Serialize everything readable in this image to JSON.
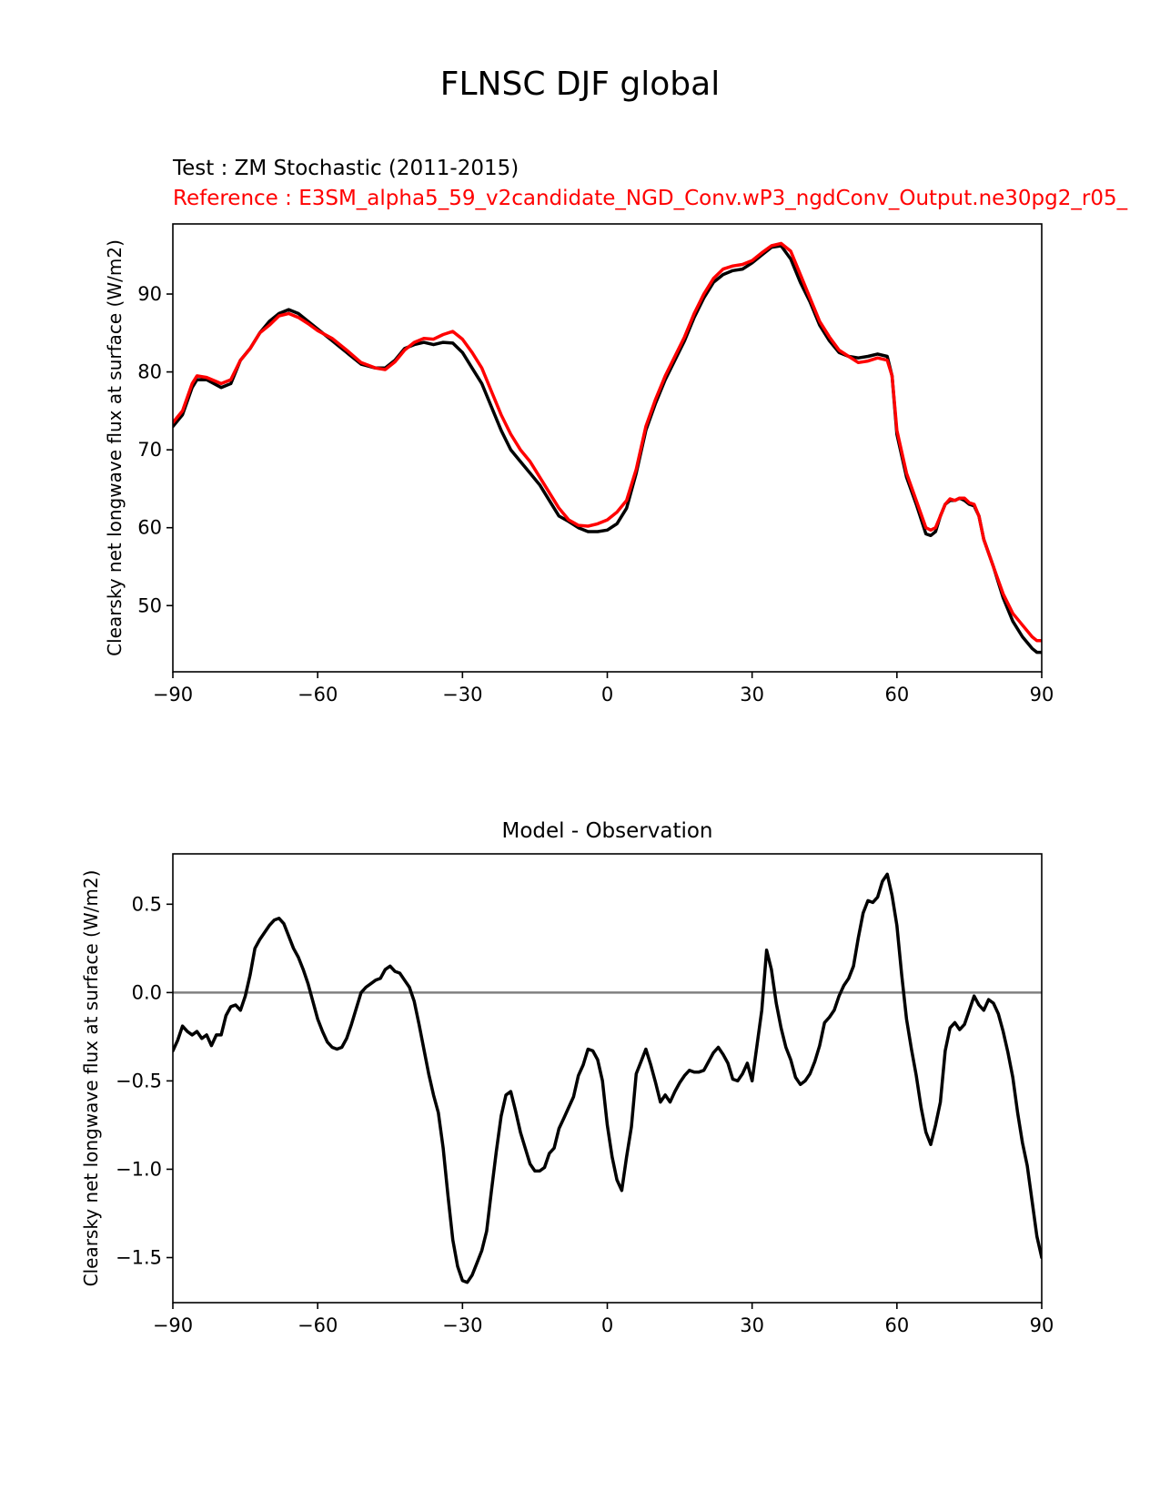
{
  "figure": {
    "suptitle": "FLNSC DJF global",
    "test_label": "Test : ZM Stochastic (2011-2015)",
    "reference_label": "Reference : E3SM_alpha5_59_v2candidate_NGD_Conv.wP3_ngdConv_Output.ne30pg2_r05_"
  },
  "chart_data": [
    {
      "type": "line",
      "title": "",
      "xlabel": "",
      "ylabel": "Clearsky net longwave flux at surface (W/m2)",
      "xlim": [
        -90,
        90
      ],
      "ylim": [
        41.5,
        99.0
      ],
      "xticks": [
        -90,
        -60,
        -30,
        0,
        30,
        60,
        90
      ],
      "xtick_labels": [
        "−90",
        "−60",
        "−30",
        "0",
        "30",
        "60",
        "90"
      ],
      "yticks": [
        50,
        60,
        70,
        80,
        90
      ],
      "ytick_labels": [
        "50",
        "60",
        "70",
        "80",
        "90"
      ],
      "grid": false,
      "series": [
        {
          "color": "#000000",
          "x": [
            -90,
            -88,
            -86,
            -85,
            -83,
            -80,
            -78,
            -76,
            -74,
            -72,
            -70,
            -68,
            -66,
            -64,
            -62,
            -60,
            -57,
            -54,
            -51,
            -48,
            -46,
            -44,
            -42,
            -40,
            -38,
            -36,
            -34,
            -32,
            -30,
            -28,
            -26,
            -24,
            -22,
            -20,
            -18,
            -16,
            -14,
            -12,
            -10,
            -8,
            -6,
            -4,
            -2,
            0,
            2,
            4,
            6,
            8,
            10,
            12,
            14,
            16,
            18,
            20,
            22,
            24,
            26,
            28,
            30,
            32,
            34,
            36,
            38,
            40,
            42,
            44,
            46,
            48,
            50,
            52,
            54,
            56,
            58,
            59,
            60,
            62,
            64,
            66,
            67,
            68,
            69,
            70,
            71,
            72,
            73,
            74,
            75,
            76,
            77,
            78,
            80,
            82,
            84,
            86,
            88,
            89,
            90
          ],
          "y": [
            73.0,
            74.5,
            78.0,
            79.0,
            79.0,
            78.0,
            78.5,
            81.5,
            83.0,
            85.0,
            86.5,
            87.5,
            88.0,
            87.5,
            86.5,
            85.5,
            84.0,
            82.5,
            81.0,
            80.5,
            80.5,
            81.5,
            83.0,
            83.5,
            83.8,
            83.5,
            83.8,
            83.7,
            82.5,
            80.5,
            78.5,
            75.5,
            72.5,
            70.0,
            68.5,
            67.0,
            65.5,
            63.5,
            61.5,
            60.8,
            60.0,
            59.5,
            59.5,
            59.7,
            60.5,
            62.5,
            67.0,
            72.5,
            76.0,
            79.0,
            81.5,
            84.0,
            87.0,
            89.5,
            91.5,
            92.5,
            93.0,
            93.2,
            94.0,
            95.0,
            96.0,
            96.2,
            94.5,
            91.5,
            89.0,
            86.0,
            84.0,
            82.5,
            82.0,
            81.8,
            82.0,
            82.3,
            82.0,
            79.5,
            72.0,
            66.5,
            63.0,
            59.2,
            59.0,
            59.5,
            61.5,
            63.0,
            63.5,
            63.5,
            63.8,
            63.5,
            63.0,
            62.8,
            61.5,
            58.5,
            55.0,
            51.0,
            48.0,
            46.0,
            44.5,
            44.0,
            44.0
          ]
        },
        {
          "color": "#ff0000",
          "x": [
            -90,
            -88,
            -86,
            -85,
            -83,
            -80,
            -78,
            -76,
            -74,
            -72,
            -70,
            -68,
            -66,
            -64,
            -62,
            -60,
            -57,
            -54,
            -51,
            -48,
            -46,
            -44,
            -42,
            -40,
            -38,
            -36,
            -34,
            -32,
            -30,
            -28,
            -26,
            -24,
            -22,
            -20,
            -18,
            -16,
            -14,
            -12,
            -10,
            -8,
            -6,
            -4,
            -2,
            0,
            2,
            4,
            6,
            8,
            10,
            12,
            14,
            16,
            18,
            20,
            22,
            24,
            26,
            28,
            30,
            32,
            34,
            36,
            38,
            40,
            42,
            44,
            46,
            48,
            50,
            52,
            54,
            56,
            58,
            59,
            60,
            62,
            64,
            66,
            67,
            68,
            69,
            70,
            71,
            72,
            73,
            74,
            75,
            76,
            77,
            78,
            80,
            82,
            84,
            86,
            88,
            89,
            90
          ],
          "y": [
            73.5,
            75.0,
            78.5,
            79.5,
            79.3,
            78.5,
            79.0,
            81.5,
            83.0,
            85.0,
            86.0,
            87.2,
            87.5,
            87.0,
            86.2,
            85.3,
            84.3,
            82.8,
            81.2,
            80.5,
            80.3,
            81.3,
            82.8,
            83.8,
            84.3,
            84.2,
            84.8,
            85.2,
            84.2,
            82.5,
            80.5,
            77.5,
            74.5,
            72.0,
            70.0,
            68.5,
            66.5,
            64.5,
            62.5,
            61.0,
            60.3,
            60.2,
            60.5,
            61.0,
            62.0,
            63.5,
            67.5,
            73.0,
            76.5,
            79.5,
            82.0,
            84.5,
            87.5,
            90.0,
            92.0,
            93.2,
            93.6,
            93.8,
            94.3,
            95.3,
            96.2,
            96.5,
            95.5,
            92.5,
            89.5,
            86.5,
            84.5,
            82.8,
            82.0,
            81.2,
            81.4,
            81.8,
            81.5,
            79.5,
            72.5,
            67.0,
            63.5,
            60.0,
            59.7,
            60.0,
            61.5,
            63.0,
            63.7,
            63.5,
            63.8,
            63.8,
            63.2,
            63.0,
            61.5,
            58.5,
            55.0,
            51.5,
            49.0,
            47.5,
            46.0,
            45.5,
            45.5
          ]
        }
      ]
    },
    {
      "type": "line",
      "title": "Model - Observation",
      "xlabel": "",
      "ylabel": "Clearsky net longwave flux at surface (W/m2)",
      "xlim": [
        -90,
        90
      ],
      "ylim": [
        -1.755,
        0.785
      ],
      "xticks": [
        -90,
        -60,
        -30,
        0,
        30,
        60,
        90
      ],
      "xtick_labels": [
        "−90",
        "−60",
        "−30",
        "0",
        "30",
        "60",
        "90"
      ],
      "yticks": [
        -1.5,
        -1.0,
        -0.5,
        0.0,
        0.5
      ],
      "ytick_labels": [
        "−1.5",
        "−1.0",
        "−0.5",
        "0.0",
        "0.5"
      ],
      "grid": false,
      "reference_line": {
        "y": 0.0,
        "color": "#808080"
      },
      "series": [
        {
          "color": "#000000",
          "x": [
            -90,
            -89,
            -88,
            -87,
            -86,
            -85,
            -84,
            -83,
            -82,
            -81,
            -80,
            -79,
            -78,
            -77,
            -76,
            -75,
            -74,
            -73,
            -72,
            -71,
            -70,
            -69,
            -68,
            -67,
            -66,
            -65,
            -64,
            -63,
            -62,
            -61,
            -60,
            -59,
            -58,
            -57,
            -56,
            -55,
            -54,
            -53,
            -52,
            -51,
            -50,
            -49,
            -48,
            -47,
            -46,
            -45,
            -44,
            -43,
            -42,
            -41,
            -40,
            -39,
            -38,
            -37,
            -36,
            -35,
            -34,
            -33,
            -32,
            -31,
            -30,
            -29,
            -28,
            -27,
            -26,
            -25,
            -24,
            -23,
            -22,
            -21,
            -20,
            -19,
            -18,
            -17,
            -16,
            -15,
            -14,
            -13,
            -12,
            -11,
            -10,
            -9,
            -8,
            -7,
            -6,
            -5,
            -4,
            -3,
            -2,
            -1,
            0,
            1,
            2,
            3,
            4,
            5,
            6,
            7,
            8,
            9,
            10,
            11,
            12,
            13,
            14,
            15,
            16,
            17,
            18,
            19,
            20,
            21,
            22,
            23,
            24,
            25,
            26,
            27,
            28,
            29,
            30,
            31,
            32,
            33,
            34,
            35,
            36,
            37,
            38,
            39,
            40,
            41,
            42,
            43,
            44,
            45,
            46,
            47,
            48,
            49,
            50,
            51,
            52,
            53,
            54,
            55,
            56,
            57,
            58,
            59,
            60,
            61,
            62,
            63,
            64,
            65,
            66,
            67,
            68,
            69,
            70,
            71,
            72,
            73,
            74,
            75,
            76,
            77,
            78,
            79,
            80,
            81,
            82,
            83,
            84,
            85,
            86,
            87,
            88,
            89,
            90
          ],
          "y": [
            -0.33,
            -0.27,
            -0.19,
            -0.22,
            -0.24,
            -0.22,
            -0.26,
            -0.24,
            -0.3,
            -0.24,
            -0.24,
            -0.13,
            -0.08,
            -0.07,
            -0.1,
            -0.02,
            0.1,
            0.25,
            0.3,
            0.34,
            0.38,
            0.41,
            0.42,
            0.39,
            0.32,
            0.25,
            0.2,
            0.13,
            0.05,
            -0.05,
            -0.15,
            -0.22,
            -0.28,
            -0.31,
            -0.32,
            -0.31,
            -0.26,
            -0.18,
            -0.09,
            0.0,
            0.03,
            0.05,
            0.07,
            0.08,
            0.13,
            0.15,
            0.12,
            0.11,
            0.07,
            0.03,
            -0.05,
            -0.18,
            -0.32,
            -0.46,
            -0.58,
            -0.68,
            -0.88,
            -1.15,
            -1.4,
            -1.55,
            -1.63,
            -1.64,
            -1.6,
            -1.53,
            -1.46,
            -1.35,
            -1.12,
            -0.9,
            -0.7,
            -0.58,
            -0.56,
            -0.67,
            -0.79,
            -0.88,
            -0.97,
            -1.01,
            -1.01,
            -0.99,
            -0.91,
            -0.88,
            -0.77,
            -0.71,
            -0.65,
            -0.59,
            -0.47,
            -0.41,
            -0.32,
            -0.33,
            -0.38,
            -0.5,
            -0.75,
            -0.93,
            -1.06,
            -1.12,
            -0.93,
            -0.76,
            -0.46,
            -0.39,
            -0.32,
            -0.41,
            -0.51,
            -0.62,
            -0.58,
            -0.62,
            -0.56,
            -0.51,
            -0.47,
            -0.44,
            -0.45,
            -0.45,
            -0.44,
            -0.39,
            -0.34,
            -0.31,
            -0.35,
            -0.4,
            -0.49,
            -0.5,
            -0.46,
            -0.4,
            -0.5,
            -0.3,
            -0.1,
            0.24,
            0.13,
            -0.06,
            -0.2,
            -0.31,
            -0.38,
            -0.48,
            -0.52,
            -0.5,
            -0.46,
            -0.39,
            -0.3,
            -0.17,
            -0.14,
            -0.1,
            -0.02,
            0.04,
            0.08,
            0.15,
            0.31,
            0.45,
            0.52,
            0.51,
            0.54,
            0.63,
            0.67,
            0.55,
            0.38,
            0.1,
            -0.15,
            -0.32,
            -0.47,
            -0.65,
            -0.79,
            -0.86,
            -0.75,
            -0.62,
            -0.33,
            -0.2,
            -0.17,
            -0.21,
            -0.18,
            -0.1,
            -0.02,
            -0.07,
            -0.1,
            -0.04,
            -0.06,
            -0.12,
            -0.22,
            -0.34,
            -0.48,
            -0.68,
            -0.85,
            -0.98,
            -1.18,
            -1.38,
            -1.5
          ]
        }
      ]
    }
  ]
}
